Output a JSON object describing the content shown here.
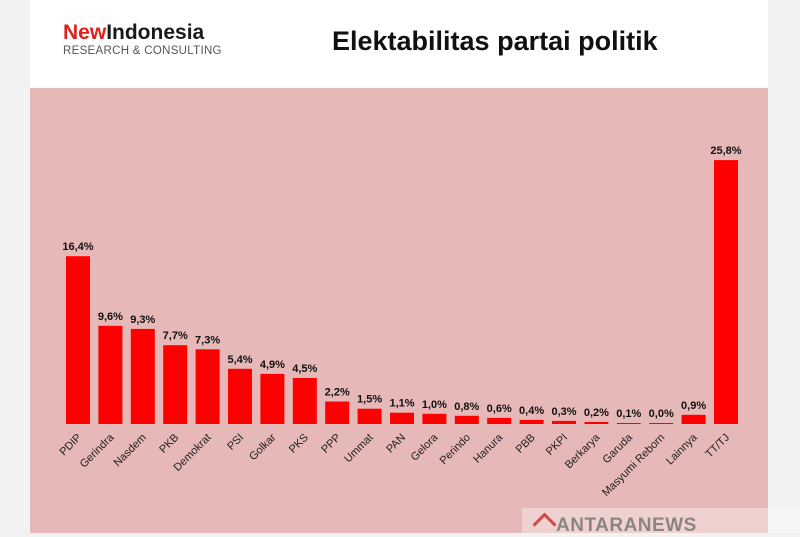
{
  "logo": {
    "brand_part1": "New",
    "brand_part2": "Indonesia",
    "tagline": "RESEARCH & CONSULTING"
  },
  "title": "Elektabilitas partai politik",
  "watermark": "ANTARANEWS",
  "colors": {
    "bar": "#ff0000",
    "plot_background": "#e6b8b7",
    "brand_accent": "#e0211b"
  },
  "chart_data": {
    "type": "bar",
    "title": "Elektabilitas partai politik",
    "xlabel": "",
    "ylabel": "",
    "ylim": [
      0,
      27
    ],
    "grid": false,
    "legend": "none",
    "categories": [
      "PDIP",
      "Gerindra",
      "Nasdem",
      "PKB",
      "Demokrat",
      "PSI",
      "Golkar",
      "PKS",
      "PPP",
      "Ummat",
      "PAN",
      "Gelora",
      "Perindo",
      "Hanura",
      "PBB",
      "PKPI",
      "Berkarya",
      "Garuda",
      "Masyumi Reborn",
      "Lainnya",
      "TT/TJ"
    ],
    "values": [
      16.4,
      9.6,
      9.3,
      7.7,
      7.3,
      5.4,
      4.9,
      4.5,
      2.2,
      1.5,
      1.1,
      1.0,
      0.8,
      0.6,
      0.4,
      0.3,
      0.2,
      0.1,
      0.0,
      0.9,
      25.8
    ],
    "labels": [
      "16,4%",
      "9,6%",
      "9,3%",
      "7,7%",
      "7,3%",
      "5,4%",
      "4,9%",
      "4,5%",
      "2,2%",
      "1,5%",
      "1,1%",
      "1,0%",
      "0,8%",
      "0,6%",
      "0,4%",
      "0,3%",
      "0,2%",
      "0,1%",
      "0,0%",
      "0,9%",
      "25,8%"
    ]
  }
}
